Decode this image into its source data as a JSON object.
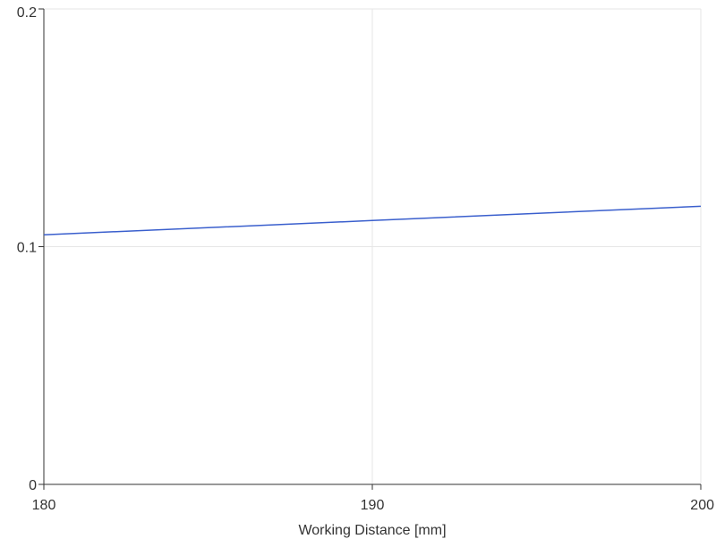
{
  "chart_data": {
    "type": "line",
    "title": "",
    "xlabel": "Working Distance [mm]",
    "ylabel": "",
    "xlim": [
      180,
      200
    ],
    "ylim": [
      0,
      0.2
    ],
    "x_ticks": [
      180,
      190,
      200
    ],
    "x_tick_labels": [
      "180",
      "190",
      "200"
    ],
    "y_ticks": [
      0,
      0.1,
      0.2
    ],
    "y_tick_labels": [
      "0",
      "0.1",
      "0.2"
    ],
    "grid": true,
    "series": [
      {
        "color": "#3a5fcd",
        "x": [
          180,
          190,
          200
        ],
        "y": [
          0.105,
          0.111,
          0.117
        ]
      }
    ]
  },
  "colors": {
    "grid": "#e6e6e6",
    "axis": "#333333",
    "line": "#3a5fcd"
  }
}
